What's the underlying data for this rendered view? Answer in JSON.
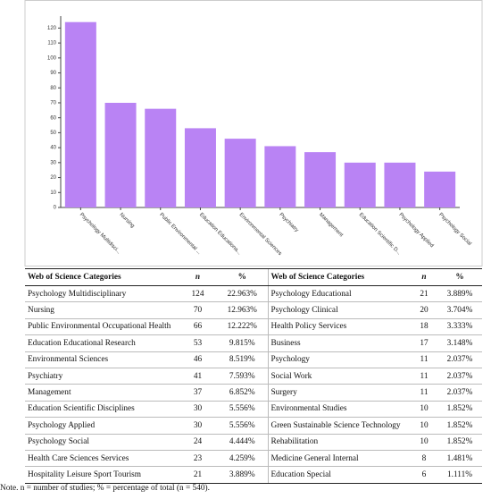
{
  "chart_data": {
    "type": "bar",
    "categories": [
      "Psychology Multidisci...",
      "Nursing",
      "Public Environmental ...",
      "Education Educationa...",
      "Environmental Sciences",
      "Psychiatry",
      "Management",
      "Education Scientific D...",
      "Psychology Applied",
      "Psychology Social"
    ],
    "values": [
      124,
      70,
      66,
      53,
      46,
      41,
      37,
      30,
      30,
      24
    ],
    "color": "#b983f4",
    "ylim": [
      0,
      128
    ],
    "yticks": [
      0,
      10,
      20,
      30,
      40,
      50,
      60,
      70,
      80,
      90,
      100,
      110,
      120
    ]
  },
  "table": {
    "columns": [
      "Web of Science Categories",
      "n",
      "%",
      "Web of Science Categories",
      "n",
      "%"
    ],
    "rows": [
      [
        "Psychology Multidisciplinary",
        124,
        "22.963%",
        "Psychology Educational",
        21,
        "3.889%"
      ],
      [
        "Nursing",
        70,
        "12.963%",
        "Psychology Clinical",
        20,
        "3.704%"
      ],
      [
        "Public Environmental Occupational Health",
        66,
        "12.222%",
        "Health Policy Services",
        18,
        "3.333%"
      ],
      [
        "Education Educational Research",
        53,
        "9.815%",
        "Business",
        17,
        "3.148%"
      ],
      [
        "Environmental Sciences",
        46,
        "8.519%",
        "Psychology",
        11,
        "2.037%"
      ],
      [
        "Psychiatry",
        41,
        "7.593%",
        "Social Work",
        11,
        "2.037%"
      ],
      [
        "Management",
        37,
        "6.852%",
        "Surgery",
        11,
        "2.037%"
      ],
      [
        "Education Scientific Disciplines",
        30,
        "5.556%",
        "Environmental Studies",
        10,
        "1.852%"
      ],
      [
        "Psychology Applied",
        30,
        "5.556%",
        "Green Sustainable Science Technology",
        10,
        "1.852%"
      ],
      [
        "Psychology Social",
        24,
        "4.444%",
        "Rehabilitation",
        10,
        "1.852%"
      ],
      [
        "Health Care Sciences Services",
        23,
        "4.259%",
        "Medicine General Internal",
        8,
        "1.481%"
      ],
      [
        "Hospitality Leisure Sport Tourism",
        21,
        "3.889%",
        "Education Special",
        6,
        "1.111%"
      ]
    ]
  },
  "note": "Note. n = number of studies; % = percentage of total (n = 540)."
}
